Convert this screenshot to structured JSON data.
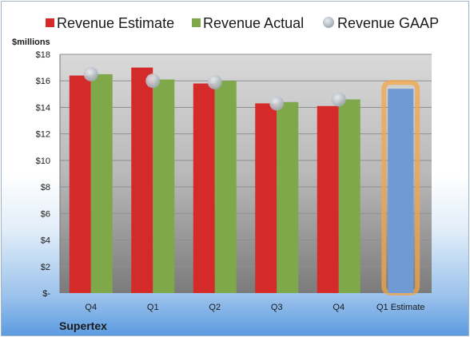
{
  "chart_data": {
    "type": "bar",
    "unit_label": "$millions",
    "company": "Supertex",
    "categories": [
      "Q4",
      "Q1",
      "Q2",
      "Q3",
      "Q4",
      "Q1 Estimate"
    ],
    "series": [
      {
        "name": "Revenue Estimate",
        "color": "#d42a2a",
        "values": [
          16.4,
          17.0,
          15.8,
          14.3,
          14.1,
          null
        ]
      },
      {
        "name": "Revenue Actual",
        "color": "#7ea84a",
        "values": [
          16.5,
          16.1,
          16.0,
          14.4,
          14.6,
          null
        ]
      },
      {
        "name": "Revenue GAAP",
        "color": "#b8c0c8",
        "values": [
          16.5,
          16.0,
          15.9,
          14.3,
          14.6,
          null
        ]
      }
    ],
    "estimate": {
      "category": "Q1 Estimate",
      "value": 15.4,
      "color": "#6f9ad4",
      "highlight_color": "#f3a646"
    },
    "ylim": [
      0,
      18
    ],
    "yticks": [
      0,
      2,
      4,
      6,
      8,
      10,
      12,
      14,
      16,
      18
    ],
    "ytick_labels": [
      "$-",
      "$2",
      "$4",
      "$6",
      "$8",
      "$10",
      "$12",
      "$14",
      "$16",
      "$18"
    ],
    "grid": true,
    "legend_position": "top"
  }
}
